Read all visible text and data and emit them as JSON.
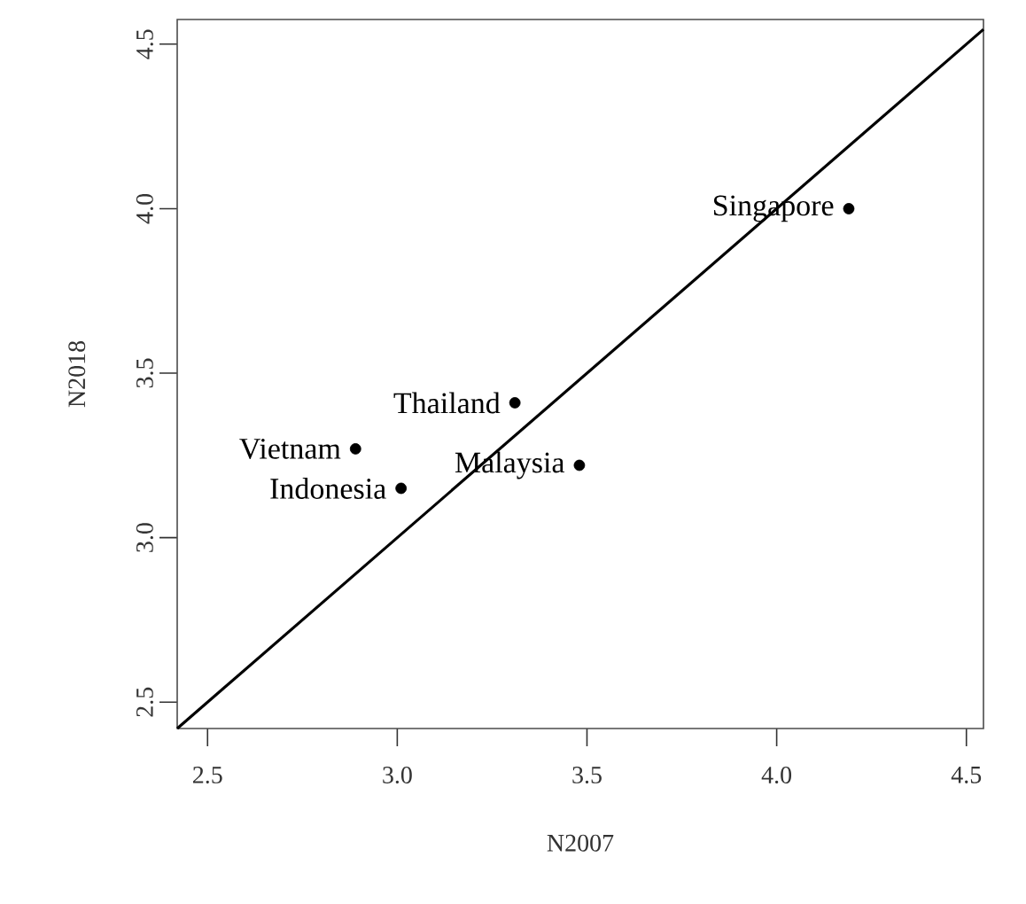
{
  "chart_data": {
    "type": "scatter",
    "xlabel": "N2007",
    "ylabel": "N2018",
    "xlim": [
      2.42,
      4.545
    ],
    "ylim": [
      2.42,
      4.575
    ],
    "xticks": [
      {
        "value": 2.5,
        "label": "2.5"
      },
      {
        "value": 3.0,
        "label": "3.0"
      },
      {
        "value": 3.5,
        "label": "3.5"
      },
      {
        "value": 4.0,
        "label": "4.0"
      },
      {
        "value": 4.5,
        "label": "4.5"
      }
    ],
    "yticks": [
      {
        "value": 2.5,
        "label": "2.5"
      },
      {
        "value": 3.0,
        "label": "3.0"
      },
      {
        "value": 3.5,
        "label": "3.5"
      },
      {
        "value": 4.0,
        "label": "4.0"
      },
      {
        "value": 4.5,
        "label": "4.5"
      }
    ],
    "grid": false,
    "series": [
      {
        "marker": "circle",
        "color": "#000000",
        "x": [
          4.19,
          3.31,
          2.89,
          3.48,
          3.01
        ],
        "values": [
          4.0,
          3.41,
          3.27,
          3.22,
          3.15
        ]
      },
      {
        "type": "line",
        "marker": "none",
        "color": "#000000",
        "x": [
          2.42,
          4.545
        ],
        "values": [
          2.42,
          4.545
        ]
      }
    ],
    "annotations": [
      {
        "text": "Singapore",
        "x": 4.19,
        "y": 4.0
      },
      {
        "text": "Thailand",
        "x": 3.31,
        "y": 3.41
      },
      {
        "text": "Vietnam",
        "x": 2.89,
        "y": 3.27
      },
      {
        "text": "Malaysia",
        "x": 3.48,
        "y": 3.22
      },
      {
        "text": "Indonesia",
        "x": 3.01,
        "y": 3.15
      }
    ]
  }
}
